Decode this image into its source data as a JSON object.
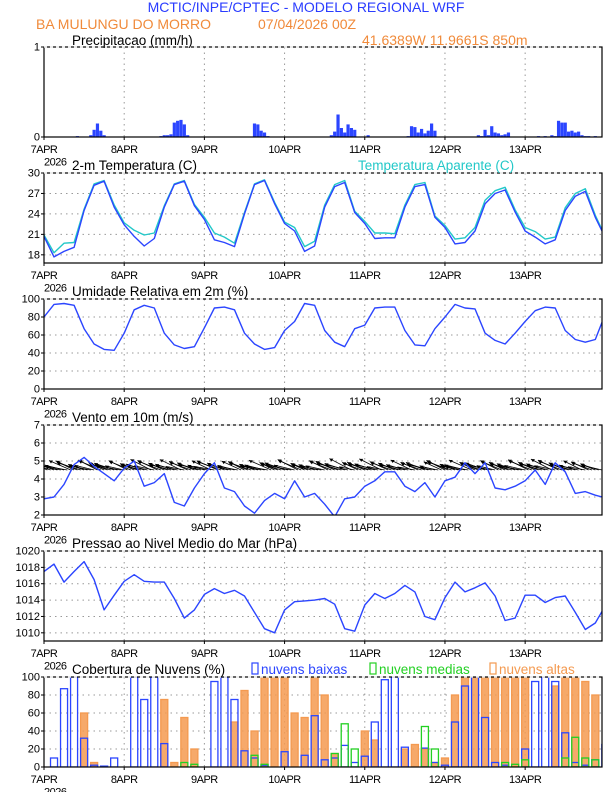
{
  "header": {
    "title": "MCTIC/INPE/CPTEC - MODELO REGIONAL WRF",
    "location": "BA MULUNGU DO MORRO",
    "run": "07/04/2026 00Z",
    "coords": "41.6389W 11.9661S 850m"
  },
  "colors": {
    "title": "#2a3cff",
    "orange": "#f08a3a",
    "line": "#2b45ff",
    "apparent": "#22c8c8",
    "low": "#2b45ff",
    "mid": "#22d022",
    "high": "#f49a50"
  },
  "chart_data": {
    "x_unit": "hours since 7APR2026 00Z",
    "x_range": [
      0,
      167
    ],
    "x_tick_labels": [
      "7APR",
      "8APR",
      "9APR",
      "10APR",
      "11APR",
      "12APR",
      "13APR"
    ],
    "x_year_label": "2026",
    "panels": [
      {
        "id": "precip",
        "type": "bar",
        "title": "Precipitacao (mm/h)",
        "ylim": [
          0,
          1
        ],
        "yticks": [
          "0",
          "1"
        ],
        "grid": "vertical-dotted",
        "points": [
          [
            10,
            0.01
          ],
          [
            14,
            0.02
          ],
          [
            15,
            0.08
          ],
          [
            16,
            0.15
          ],
          [
            17,
            0.07
          ],
          [
            18,
            0.02
          ],
          [
            35,
            0.01
          ],
          [
            36,
            0.02
          ],
          [
            37,
            0.02
          ],
          [
            38,
            0.03
          ],
          [
            39,
            0.16
          ],
          [
            40,
            0.18
          ],
          [
            41,
            0.19
          ],
          [
            42,
            0.14
          ],
          [
            43,
            0.02
          ],
          [
            63,
            0.15
          ],
          [
            64,
            0.14
          ],
          [
            65,
            0.07
          ],
          [
            66,
            0.05
          ],
          [
            67,
            0.01
          ],
          [
            86,
            0.02
          ],
          [
            87,
            0.06
          ],
          [
            88,
            0.25
          ],
          [
            89,
            0.1
          ],
          [
            90,
            0.05
          ],
          [
            91,
            0.14
          ],
          [
            92,
            0.1
          ],
          [
            93,
            0.08
          ],
          [
            97,
            0.02
          ],
          [
            109,
            0.01
          ],
          [
            110,
            0.12
          ],
          [
            111,
            0.11
          ],
          [
            112,
            0.05
          ],
          [
            113,
            0.09
          ],
          [
            114,
            0.04
          ],
          [
            115,
            0.07
          ],
          [
            116,
            0.15
          ],
          [
            117,
            0.07
          ],
          [
            130,
            0.02
          ],
          [
            131,
            0.01
          ],
          [
            132,
            0.08
          ],
          [
            133,
            0.02
          ],
          [
            134,
            0.12
          ],
          [
            135,
            0.05
          ],
          [
            136,
            0.04
          ],
          [
            137,
            0.02
          ],
          [
            138,
            0.03
          ],
          [
            139,
            0.05
          ],
          [
            148,
            0.01
          ],
          [
            150,
            0.01
          ],
          [
            152,
            0.02
          ],
          [
            153,
            0.01
          ],
          [
            154,
            0.18
          ],
          [
            155,
            0.16
          ],
          [
            156,
            0.16
          ],
          [
            157,
            0.06
          ],
          [
            158,
            0.07
          ],
          [
            159,
            0.05
          ],
          [
            160,
            0.06
          ],
          [
            161,
            0.02
          ],
          [
            162,
            0.01
          ],
          [
            163,
            0.01
          ],
          [
            165,
            0.01
          ]
        ]
      },
      {
        "id": "temp",
        "type": "line",
        "title": "2-m Temperatura (C)",
        "legend": "Temperatura Aparente (C)",
        "ylim": [
          16.8,
          30
        ],
        "yticks": [
          "18",
          "21",
          "24",
          "27",
          "30"
        ],
        "grid": "dotted",
        "step_hours": 3,
        "series": [
          {
            "name": "2-m Temperatura (C)",
            "values": [
              20.7,
              17.7,
              18.5,
              19.1,
              24.5,
              28.2,
              28.8,
              25,
              22.4,
              20.7,
              19.3,
              20.4,
              25,
              28.3,
              28.8,
              25.2,
              23.2,
              20.2,
              19.8,
              19.2,
              24,
              28.3,
              28.9,
              25.5,
              22.6,
              21.5,
              18.5,
              19.3,
              25,
              28,
              28.6,
              24.2,
              22.6,
              20.4,
              20.5,
              20.5,
              25,
              28,
              28.3,
              23.5,
              22,
              19.6,
              19.8,
              21.5,
              25.5,
              27,
              27.5,
              24.3,
              21.5,
              20.6,
              19.6,
              20.2,
              24.5,
              26.6,
              27.3,
              23.5,
              21.5
            ]
          },
          {
            "name": "Temperatura Aparente (C)",
            "values": [
              20.9,
              18.3,
              19.7,
              19.8,
              24.7,
              28.4,
              28.9,
              25.3,
              22.7,
              21.6,
              20.9,
              21.2,
              25.2,
              28.4,
              28.9,
              25.4,
              23.5,
              21.2,
              20.6,
              19.7,
              24.2,
              28.4,
              29,
              25.7,
              22.8,
              22,
              19.2,
              20,
              25.3,
              28.3,
              28.9,
              24.4,
              22.9,
              21.2,
              21.2,
              21.1,
              25.3,
              28.3,
              28.6,
              23.7,
              22.3,
              20.3,
              20.5,
              22,
              26,
              27.4,
              27.9,
              24.6,
              22,
              21.4,
              20.3,
              20.6,
              24.9,
              27,
              27.7,
              23.8,
              21.7
            ]
          }
        ]
      },
      {
        "id": "humidity",
        "type": "line",
        "title": "Umidade Relativa em 2m (%)",
        "ylim": [
          0,
          100
        ],
        "yticks": [
          "0",
          "20",
          "40",
          "60",
          "80",
          "100"
        ],
        "grid": "dotted",
        "step_hours": 3,
        "series": [
          {
            "values": [
              80,
              94,
              95,
              93,
              67,
              50,
              44,
              43,
              62,
              88,
              93,
              90,
              62,
              49,
              45,
              47,
              68,
              90,
              91,
              88,
              62,
              50,
              44,
              46,
              65,
              75,
              95,
              93,
              65,
              52,
              47,
              67,
              71,
              90,
              91,
              91,
              65,
              49,
              48,
              67,
              80,
              94,
              90,
              89,
              62,
              54,
              50,
              62,
              75,
              87,
              91,
              90,
              65,
              55,
              52,
              55,
              74
            ]
          }
        ]
      },
      {
        "id": "wind",
        "type": "line",
        "title": "Vento em 10m (m/s)",
        "ylim": [
          2,
          7
        ],
        "yticks": [
          "2",
          "3",
          "4",
          "5",
          "6",
          "7"
        ],
        "grid": "dotted",
        "step_hours": 3,
        "vector_baseline": 4.5,
        "series": [
          {
            "values": [
              2.9,
              3.0,
              3.7,
              4.8,
              5.2,
              4.7,
              4.3,
              3.9,
              4.6,
              5.0,
              3.6,
              3.8,
              4.3,
              2.7,
              2.5,
              3.5,
              4.3,
              4.9,
              3.5,
              3.3,
              2.5,
              2.1,
              2.8,
              3.2,
              2.9,
              3.9,
              3.0,
              3.2,
              2.6,
              1.9,
              2.9,
              3.0,
              3.6,
              3.9,
              4.4,
              4.4,
              3.6,
              3.3,
              3.8,
              3.0,
              3.9,
              4.1,
              4.9,
              4.3,
              4.9,
              3.5,
              3.4,
              3.6,
              3.9,
              4.5,
              3.7,
              4.9,
              4.4,
              3.2,
              3.3,
              3.1,
              3.0
            ]
          }
        ]
      },
      {
        "id": "pressure",
        "type": "line",
        "title": "Pressao ao Nivel Medio do Mar (hPa)",
        "ylim": [
          1009,
          1020
        ],
        "yticks": [
          "1010",
          "1012",
          "1014",
          "1016",
          "1018",
          "1020"
        ],
        "grid": "dotted",
        "step_hours": 3,
        "series": [
          {
            "values": [
              1017.5,
              1018.4,
              1016.2,
              1017.5,
              1018.7,
              1016.5,
              1012.8,
              1014.6,
              1016.3,
              1017.1,
              1016.3,
              1016.2,
              1016.2,
              1014.2,
              1011.8,
              1012.8,
              1014.7,
              1015.4,
              1014.8,
              1015.2,
              1014.5,
              1012.5,
              1010.5,
              1010.0,
              1012.8,
              1013.8,
              1013.9,
              1014.0,
              1014.2,
              1013.5,
              1010.5,
              1010.2,
              1013.4,
              1014.8,
              1014.2,
              1014.8,
              1015.8,
              1015.0,
              1012.0,
              1011.6,
              1014.3,
              1016.2,
              1015.0,
              1015.5,
              1016.1,
              1014.5,
              1011.5,
              1011.8,
              1014.6,
              1014.6,
              1013.7,
              1014.3,
              1014.5,
              1012.5,
              1010.4,
              1011.2,
              1012.6
            ]
          }
        ]
      },
      {
        "id": "clouds",
        "type": "bar",
        "title": "Cobertura de Nuvens (%)",
        "ylim": [
          0,
          100
        ],
        "yticks": [
          "0",
          "20",
          "40",
          "60",
          "80",
          "100"
        ],
        "grid": "dotted",
        "step_hours": 3,
        "series": [
          {
            "name": "nuvens altas",
            "values": [
              0,
              0,
              0,
              0,
              60,
              5,
              0,
              0,
              0,
              0,
              0,
              0,
              75,
              5,
              55,
              20,
              0,
              0,
              0,
              50,
              85,
              40,
              100,
              100,
              100,
              60,
              55,
              100,
              80,
              15,
              0,
              0,
              40,
              30,
              0,
              0,
              20,
              25,
              20,
              5,
              10,
              80,
              100,
              100,
              100,
              100,
              100,
              100,
              100,
              0,
              0,
              90,
              100,
              100,
              95,
              80,
              0
            ]
          },
          {
            "name": "nuvens baixas",
            "values": [
              0,
              10,
              87,
              100,
              32,
              2,
              1,
              10,
              0,
              100,
              75,
              100,
              26,
              0,
              0,
              0,
              0,
              95,
              100,
              75,
              18,
              10,
              2,
              0,
              17,
              0,
              13,
              57,
              8,
              10,
              24,
              5,
              12,
              50,
              97,
              100,
              22,
              0,
              21,
              5,
              2,
              50,
              90,
              100,
              55,
              5,
              2,
              0,
              20,
              95,
              100,
              95,
              38,
              5,
              2,
              8,
              25
            ]
          },
          {
            "name": "nuvens medias",
            "values": [
              0,
              0,
              0,
              0,
              0,
              0,
              0,
              0,
              0,
              0,
              0,
              0,
              0,
              0,
              5,
              3,
              0,
              0,
              0,
              0,
              0,
              13,
              3,
              0,
              0,
              0,
              0,
              0,
              0,
              15,
              48,
              20,
              0,
              0,
              0,
              0,
              0,
              0,
              45,
              20,
              0,
              0,
              0,
              0,
              0,
              0,
              5,
              3,
              8,
              0,
              0,
              0,
              10,
              33,
              10,
              8,
              0
            ]
          }
        ]
      }
    ]
  }
}
